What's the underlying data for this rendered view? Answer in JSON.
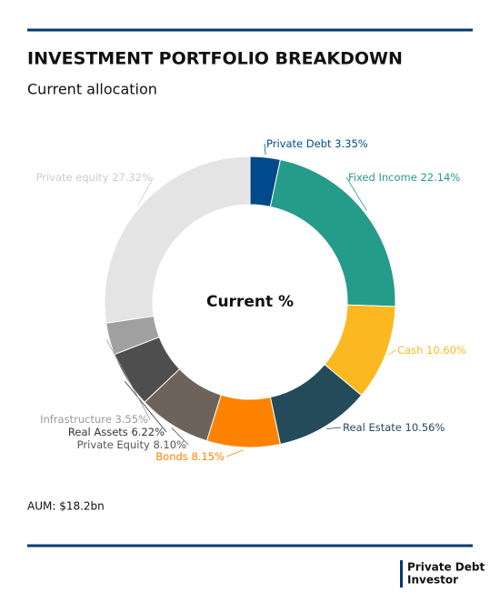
{
  "chart_data": {
    "type": "donut",
    "title": "INVESTMENT PORTFOLIO BREAKDOWN",
    "subtitle": "Current allocation",
    "center_label": "Current %",
    "categories": [
      "Private Debt",
      "Fixed Income",
      "Cash",
      "Real Estate",
      "Bonds",
      "Private Equity",
      "Real Assets",
      "Infrastructure",
      "Private equity"
    ],
    "values": [
      3.35,
      22.14,
      10.6,
      10.56,
      8.15,
      8.1,
      6.22,
      3.55,
      27.32
    ],
    "value_labels": [
      "3.35%",
      "22.14%",
      "10.60%",
      "10.56%",
      "8.15%",
      "8.10%",
      "6.22%",
      "3.55%",
      "27.32%"
    ],
    "colors": [
      "#004a8c",
      "#259b8a",
      "#fbb820",
      "#244b5a",
      "#ff8200",
      "#6e635a",
      "#4e4e4e",
      "#a0a0a0",
      "#e4e4e4"
    ],
    "label_colors": [
      "#004a8c",
      "#259b8a",
      "#fbb820",
      "#244b5a",
      "#ff8200",
      "#555555",
      "#333333",
      "#999999",
      "#cccccc"
    ],
    "note": "AUM: $18.2bn"
  },
  "logo": {
    "lines": [
      "Private Debt",
      "Investor"
    ]
  }
}
